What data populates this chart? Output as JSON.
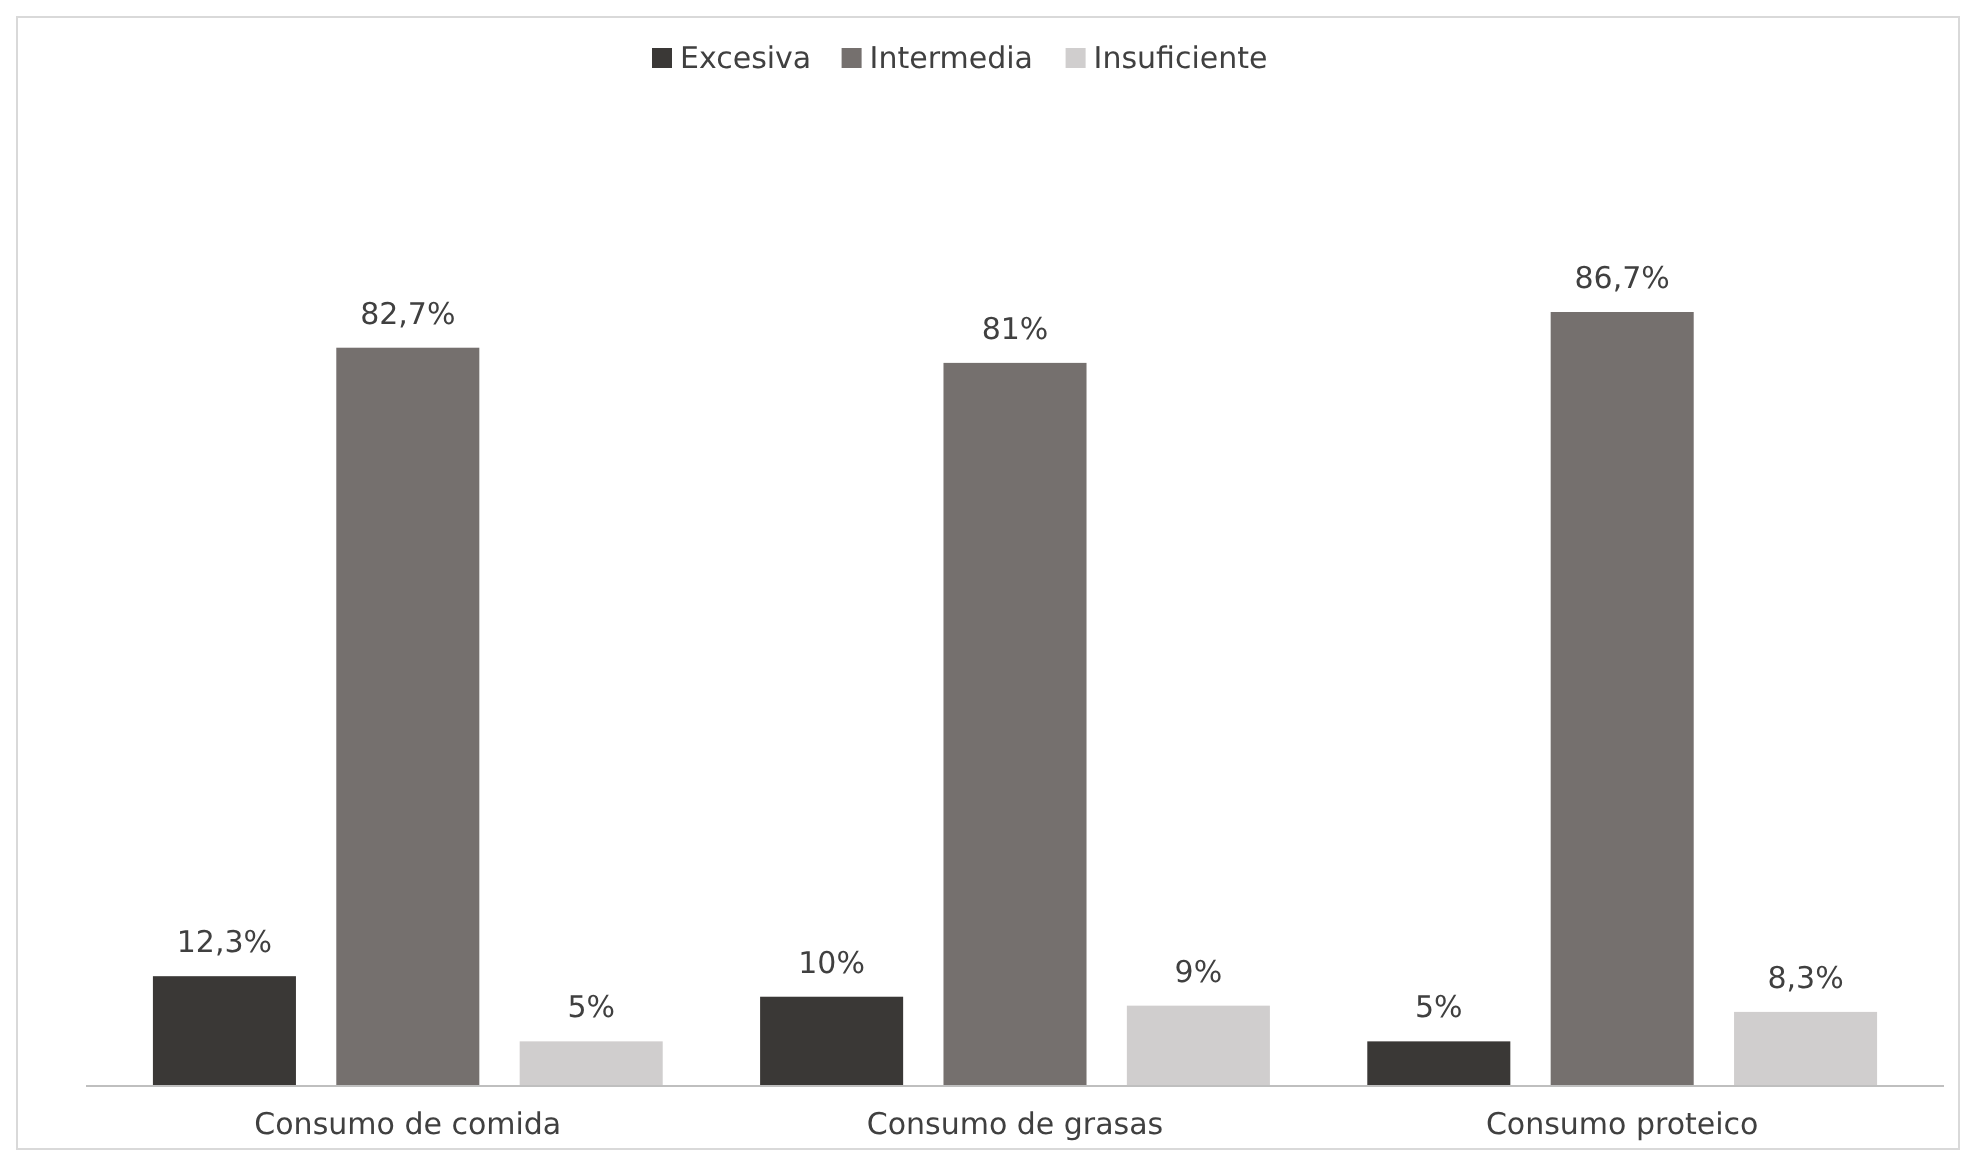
{
  "chart_data": {
    "type": "bar",
    "categories": [
      "Consumo de comida",
      "Consumo de grasas",
      "Consumo proteico"
    ],
    "series": [
      {
        "name": "Excesiva",
        "color": "#3a3836",
        "values": [
          12.3,
          10,
          5
        ],
        "value_labels": [
          "12,3%",
          "10%",
          "5%"
        ]
      },
      {
        "name": "Intermedia",
        "color": "#75706e",
        "values": [
          82.7,
          81,
          86.7
        ],
        "value_labels": [
          "82,7%",
          "81%",
          "86,7%"
        ]
      },
      {
        "name": "Insuficiente",
        "color": "#d0cece",
        "values": [
          5,
          9,
          8.3
        ],
        "value_labels": [
          "5%",
          "9%",
          "8,3%"
        ]
      }
    ],
    "legend": "top"
  }
}
